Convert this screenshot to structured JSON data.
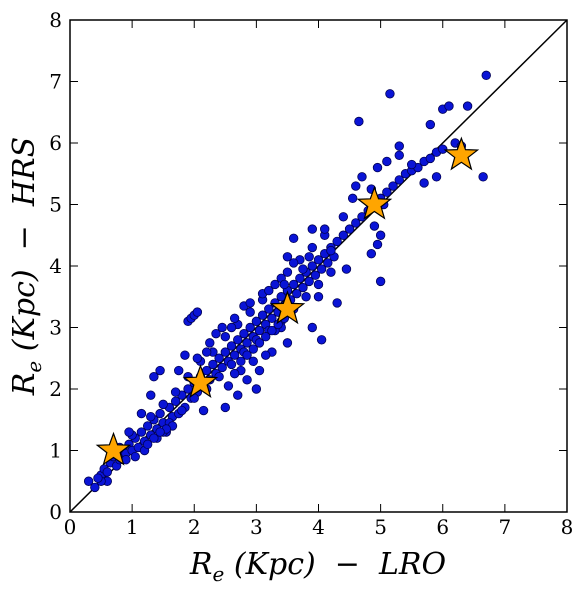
{
  "chart_data": {
    "type": "scatter",
    "xlabel": {
      "main": "R",
      "sub": "e",
      "rest": " (Kpc)  −  LRO"
    },
    "ylabel": {
      "main": "R",
      "sub": "e",
      "rest": " (Kpc)  −  HRS"
    },
    "xlim": [
      0,
      8
    ],
    "ylim": [
      0,
      8
    ],
    "x_ticks": [
      "0",
      "1",
      "2",
      "3",
      "4",
      "5",
      "6",
      "7",
      "8"
    ],
    "y_ticks": [
      "0",
      "1",
      "2",
      "3",
      "4",
      "5",
      "6",
      "7",
      "8"
    ],
    "reference_line": {
      "type": "y=x",
      "from": [
        0,
        0
      ],
      "to": [
        8,
        8
      ],
      "color": "#000000"
    },
    "colors": {
      "points": "#0a14d6",
      "point_edge": "#000055",
      "stars": "#ffa500",
      "star_edge": "#000000"
    },
    "series": [
      {
        "marker": "circle",
        "points": [
          [
            0.3,
            0.5
          ],
          [
            0.4,
            0.4
          ],
          [
            0.5,
            0.6
          ],
          [
            0.55,
            0.7
          ],
          [
            0.6,
            0.65
          ],
          [
            0.65,
            0.8
          ],
          [
            0.7,
            0.9
          ],
          [
            0.75,
            0.75
          ],
          [
            0.8,
            0.85
          ],
          [
            0.85,
            1.0
          ],
          [
            0.9,
            0.95
          ],
          [
            0.95,
            1.1
          ],
          [
            1.0,
            1.0
          ],
          [
            1.05,
            1.2
          ],
          [
            1.1,
            1.05
          ],
          [
            1.15,
            1.3
          ],
          [
            1.2,
            1.15
          ],
          [
            1.25,
            1.4
          ],
          [
            1.3,
            1.25
          ],
          [
            1.35,
            1.5
          ],
          [
            1.4,
            1.35
          ],
          [
            1.45,
            1.6
          ],
          [
            1.5,
            1.45
          ],
          [
            1.55,
            1.3
          ],
          [
            1.6,
            1.7
          ],
          [
            1.65,
            1.55
          ],
          [
            1.7,
            1.8
          ],
          [
            1.75,
            1.6
          ],
          [
            1.8,
            1.9
          ],
          [
            1.85,
            1.7
          ],
          [
            1.9,
            2.0
          ],
          [
            1.95,
            1.85
          ],
          [
            2.0,
            2.1
          ],
          [
            2.05,
            1.95
          ],
          [
            2.1,
            2.2
          ],
          [
            2.15,
            2.05
          ],
          [
            2.2,
            2.3
          ],
          [
            2.25,
            2.15
          ],
          [
            2.3,
            2.4
          ],
          [
            2.35,
            2.25
          ],
          [
            2.4,
            2.5
          ],
          [
            2.45,
            2.35
          ],
          [
            2.5,
            2.6
          ],
          [
            2.55,
            2.45
          ],
          [
            2.6,
            2.7
          ],
          [
            2.65,
            2.55
          ],
          [
            2.7,
            2.8
          ],
          [
            2.75,
            2.65
          ],
          [
            2.8,
            2.9
          ],
          [
            2.85,
            2.75
          ],
          [
            2.9,
            3.0
          ],
          [
            2.95,
            2.85
          ],
          [
            3.0,
            3.1
          ],
          [
            3.05,
            2.95
          ],
          [
            3.1,
            3.2
          ],
          [
            3.15,
            3.05
          ],
          [
            3.2,
            3.3
          ],
          [
            3.25,
            3.15
          ],
          [
            3.3,
            3.4
          ],
          [
            3.35,
            3.25
          ],
          [
            3.4,
            3.5
          ],
          [
            3.45,
            3.35
          ],
          [
            3.5,
            3.6
          ],
          [
            3.55,
            3.45
          ],
          [
            3.6,
            3.7
          ],
          [
            3.65,
            3.55
          ],
          [
            3.7,
            3.8
          ],
          [
            3.75,
            3.65
          ],
          [
            3.8,
            3.9
          ],
          [
            3.85,
            3.75
          ],
          [
            3.9,
            4.0
          ],
          [
            3.95,
            3.85
          ],
          [
            4.0,
            4.1
          ],
          [
            4.05,
            3.95
          ],
          [
            4.1,
            4.2
          ],
          [
            4.15,
            4.05
          ],
          [
            4.2,
            4.3
          ],
          [
            4.25,
            4.15
          ],
          [
            4.3,
            4.4
          ],
          [
            4.4,
            4.5
          ],
          [
            4.5,
            4.6
          ],
          [
            4.6,
            4.7
          ],
          [
            4.7,
            4.8
          ],
          [
            4.8,
            4.9
          ],
          [
            4.9,
            5.0
          ],
          [
            5.0,
            5.1
          ],
          [
            5.1,
            5.2
          ],
          [
            5.2,
            5.3
          ],
          [
            5.3,
            5.4
          ],
          [
            5.4,
            5.5
          ],
          [
            5.5,
            5.55
          ],
          [
            5.6,
            5.6
          ],
          [
            5.7,
            5.7
          ],
          [
            5.8,
            5.75
          ],
          [
            5.9,
            5.85
          ],
          [
            6.0,
            5.9
          ],
          [
            6.2,
            6.0
          ],
          [
            6.3,
            5.95
          ],
          [
            1.0,
            1.25
          ],
          [
            1.2,
            1.0
          ],
          [
            1.3,
            1.55
          ],
          [
            1.4,
            1.2
          ],
          [
            1.5,
            1.75
          ],
          [
            1.6,
            1.45
          ],
          [
            1.7,
            1.95
          ],
          [
            1.8,
            1.65
          ],
          [
            1.9,
            2.2
          ],
          [
            2.0,
            1.85
          ],
          [
            2.1,
            2.45
          ],
          [
            2.2,
            2.0
          ],
          [
            2.3,
            2.6
          ],
          [
            2.4,
            2.2
          ],
          [
            2.5,
            2.85
          ],
          [
            2.6,
            2.4
          ],
          [
            2.7,
            3.05
          ],
          [
            2.8,
            2.6
          ],
          [
            2.9,
            3.25
          ],
          [
            3.0,
            2.8
          ],
          [
            3.1,
            3.45
          ],
          [
            3.2,
            2.95
          ],
          [
            3.3,
            3.7
          ],
          [
            3.4,
            3.1
          ],
          [
            3.5,
            3.9
          ],
          [
            3.6,
            3.3
          ],
          [
            3.7,
            4.1
          ],
          [
            3.8,
            3.5
          ],
          [
            3.9,
            4.3
          ],
          [
            4.0,
            3.7
          ],
          [
            4.1,
            4.5
          ],
          [
            4.2,
            3.9
          ],
          [
            1.9,
            3.1
          ],
          [
            1.95,
            3.15
          ],
          [
            2.0,
            3.2
          ],
          [
            2.05,
            3.25
          ],
          [
            1.3,
            1.9
          ],
          [
            1.35,
            2.2
          ],
          [
            1.45,
            2.3
          ],
          [
            1.5,
            1.3
          ],
          [
            1.85,
            2.55
          ],
          [
            2.15,
            1.65
          ],
          [
            2.5,
            1.7
          ],
          [
            2.7,
            1.9
          ],
          [
            2.55,
            2.05
          ],
          [
            2.75,
            2.3
          ],
          [
            3.05,
            2.3
          ],
          [
            3.0,
            2.0
          ],
          [
            3.25,
            2.6
          ],
          [
            3.5,
            2.75
          ],
          [
            3.9,
            3.0
          ],
          [
            4.0,
            3.5
          ],
          [
            4.05,
            2.8
          ],
          [
            4.3,
            3.4
          ],
          [
            4.1,
            4.6
          ],
          [
            3.6,
            4.45
          ],
          [
            3.5,
            4.15
          ],
          [
            4.55,
            5.1
          ],
          [
            4.6,
            5.3
          ],
          [
            4.7,
            5.45
          ],
          [
            4.85,
            5.25
          ],
          [
            5.05,
            5.0
          ],
          [
            4.65,
            6.35
          ],
          [
            5.15,
            6.8
          ],
          [
            4.95,
            5.6
          ],
          [
            5.1,
            5.7
          ],
          [
            5.3,
            5.8
          ],
          [
            5.5,
            5.65
          ],
          [
            5.7,
            5.35
          ],
          [
            5.9,
            5.45
          ],
          [
            6.0,
            6.55
          ],
          [
            6.1,
            6.6
          ],
          [
            6.4,
            6.6
          ],
          [
            6.7,
            7.1
          ],
          [
            6.65,
            5.45
          ],
          [
            5.8,
            6.3
          ],
          [
            5.3,
            5.95
          ],
          [
            4.95,
            4.35
          ],
          [
            5.0,
            3.75
          ],
          [
            4.45,
            3.95
          ],
          [
            4.9,
            4.65
          ],
          [
            5.0,
            4.5
          ],
          [
            4.85,
            4.2
          ],
          [
            4.4,
            4.8
          ],
          [
            4.2,
            4.25
          ],
          [
            3.9,
            4.6
          ],
          [
            3.6,
            4.05
          ],
          [
            3.4,
            3.0
          ],
          [
            3.3,
            2.95
          ],
          [
            3.15,
            2.55
          ],
          [
            2.95,
            2.45
          ],
          [
            2.85,
            2.15
          ],
          [
            2.35,
            2.9
          ],
          [
            2.25,
            2.75
          ],
          [
            2.45,
            3.0
          ],
          [
            2.2,
            2.6
          ],
          [
            2.05,
            2.5
          ],
          [
            1.75,
            2.3
          ],
          [
            1.65,
            1.4
          ],
          [
            1.55,
            1.35
          ],
          [
            1.15,
            1.6
          ],
          [
            1.05,
            0.9
          ],
          [
            0.95,
            1.3
          ],
          [
            0.9,
            0.85
          ],
          [
            0.8,
            1.05
          ],
          [
            0.7,
            0.95
          ],
          [
            0.6,
            0.5
          ],
          [
            0.5,
            0.5
          ],
          [
            0.45,
            0.55
          ],
          [
            1.25,
            1.1
          ],
          [
            1.35,
            1.2
          ],
          [
            1.45,
            1.3
          ],
          [
            2.65,
            2.25
          ],
          [
            2.75,
            2.45
          ],
          [
            2.85,
            2.55
          ],
          [
            2.95,
            2.65
          ],
          [
            3.05,
            2.75
          ],
          [
            3.15,
            2.85
          ],
          [
            3.25,
            2.95
          ],
          [
            3.35,
            3.05
          ],
          [
            3.45,
            3.15
          ],
          [
            3.55,
            3.25
          ],
          [
            2.6,
            3.0
          ],
          [
            2.65,
            3.15
          ],
          [
            2.8,
            3.35
          ],
          [
            2.9,
            3.4
          ],
          [
            3.1,
            3.55
          ],
          [
            3.2,
            3.6
          ],
          [
            3.4,
            3.8
          ],
          [
            3.45,
            3.7
          ],
          [
            3.75,
            3.95
          ],
          [
            3.85,
            4.15
          ]
        ]
      },
      {
        "marker": "star",
        "points": [
          [
            0.7,
            1.0
          ],
          [
            2.1,
            2.1
          ],
          [
            3.5,
            3.3
          ],
          [
            4.9,
            5.0
          ],
          [
            6.3,
            5.8
          ]
        ]
      }
    ]
  }
}
